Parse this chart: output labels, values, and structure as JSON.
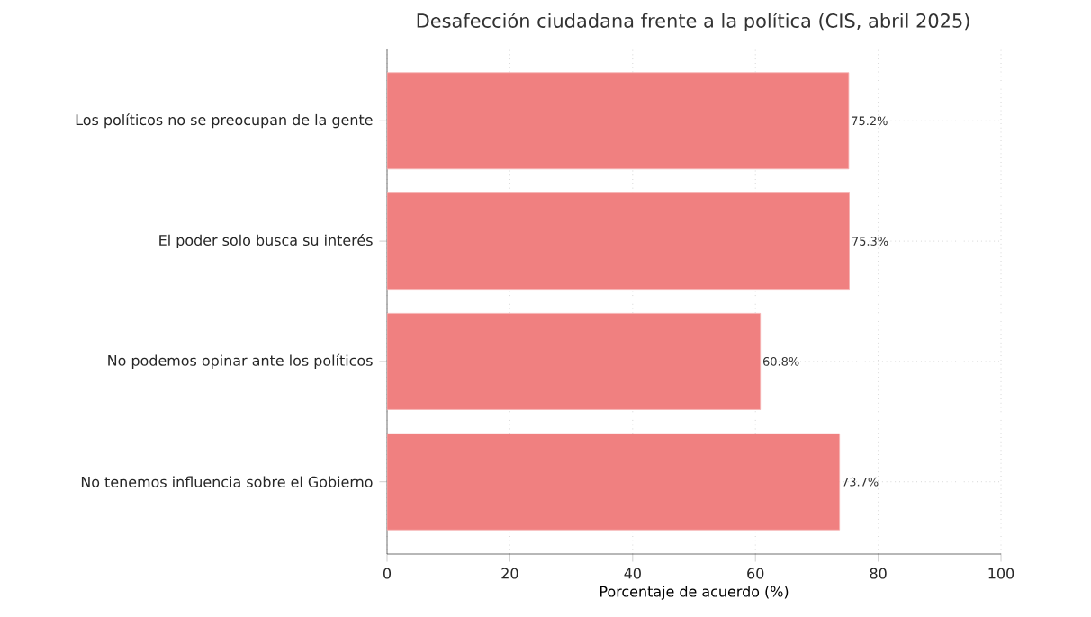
{
  "chart_data": {
    "type": "bar",
    "orientation": "horizontal",
    "title": "Desafección ciudadana frente a la política (CIS, abril 2025)",
    "xlabel": "Porcentaje de acuerdo (%)",
    "categories": [
      "Los políticos no se preocupan de la gente",
      "El poder solo busca su interés",
      "No podemos opinar ante los políticos",
      "No tenemos influencia sobre el Gobierno"
    ],
    "values": [
      75.2,
      75.3,
      60.8,
      73.7
    ],
    "value_labels": [
      "75.2%",
      "75.3%",
      "60.8%",
      "73.7%"
    ],
    "color": "#f08080",
    "xlim": [
      0,
      100
    ],
    "xticks": [
      0,
      20,
      40,
      60,
      80,
      100
    ],
    "grid": true
  }
}
